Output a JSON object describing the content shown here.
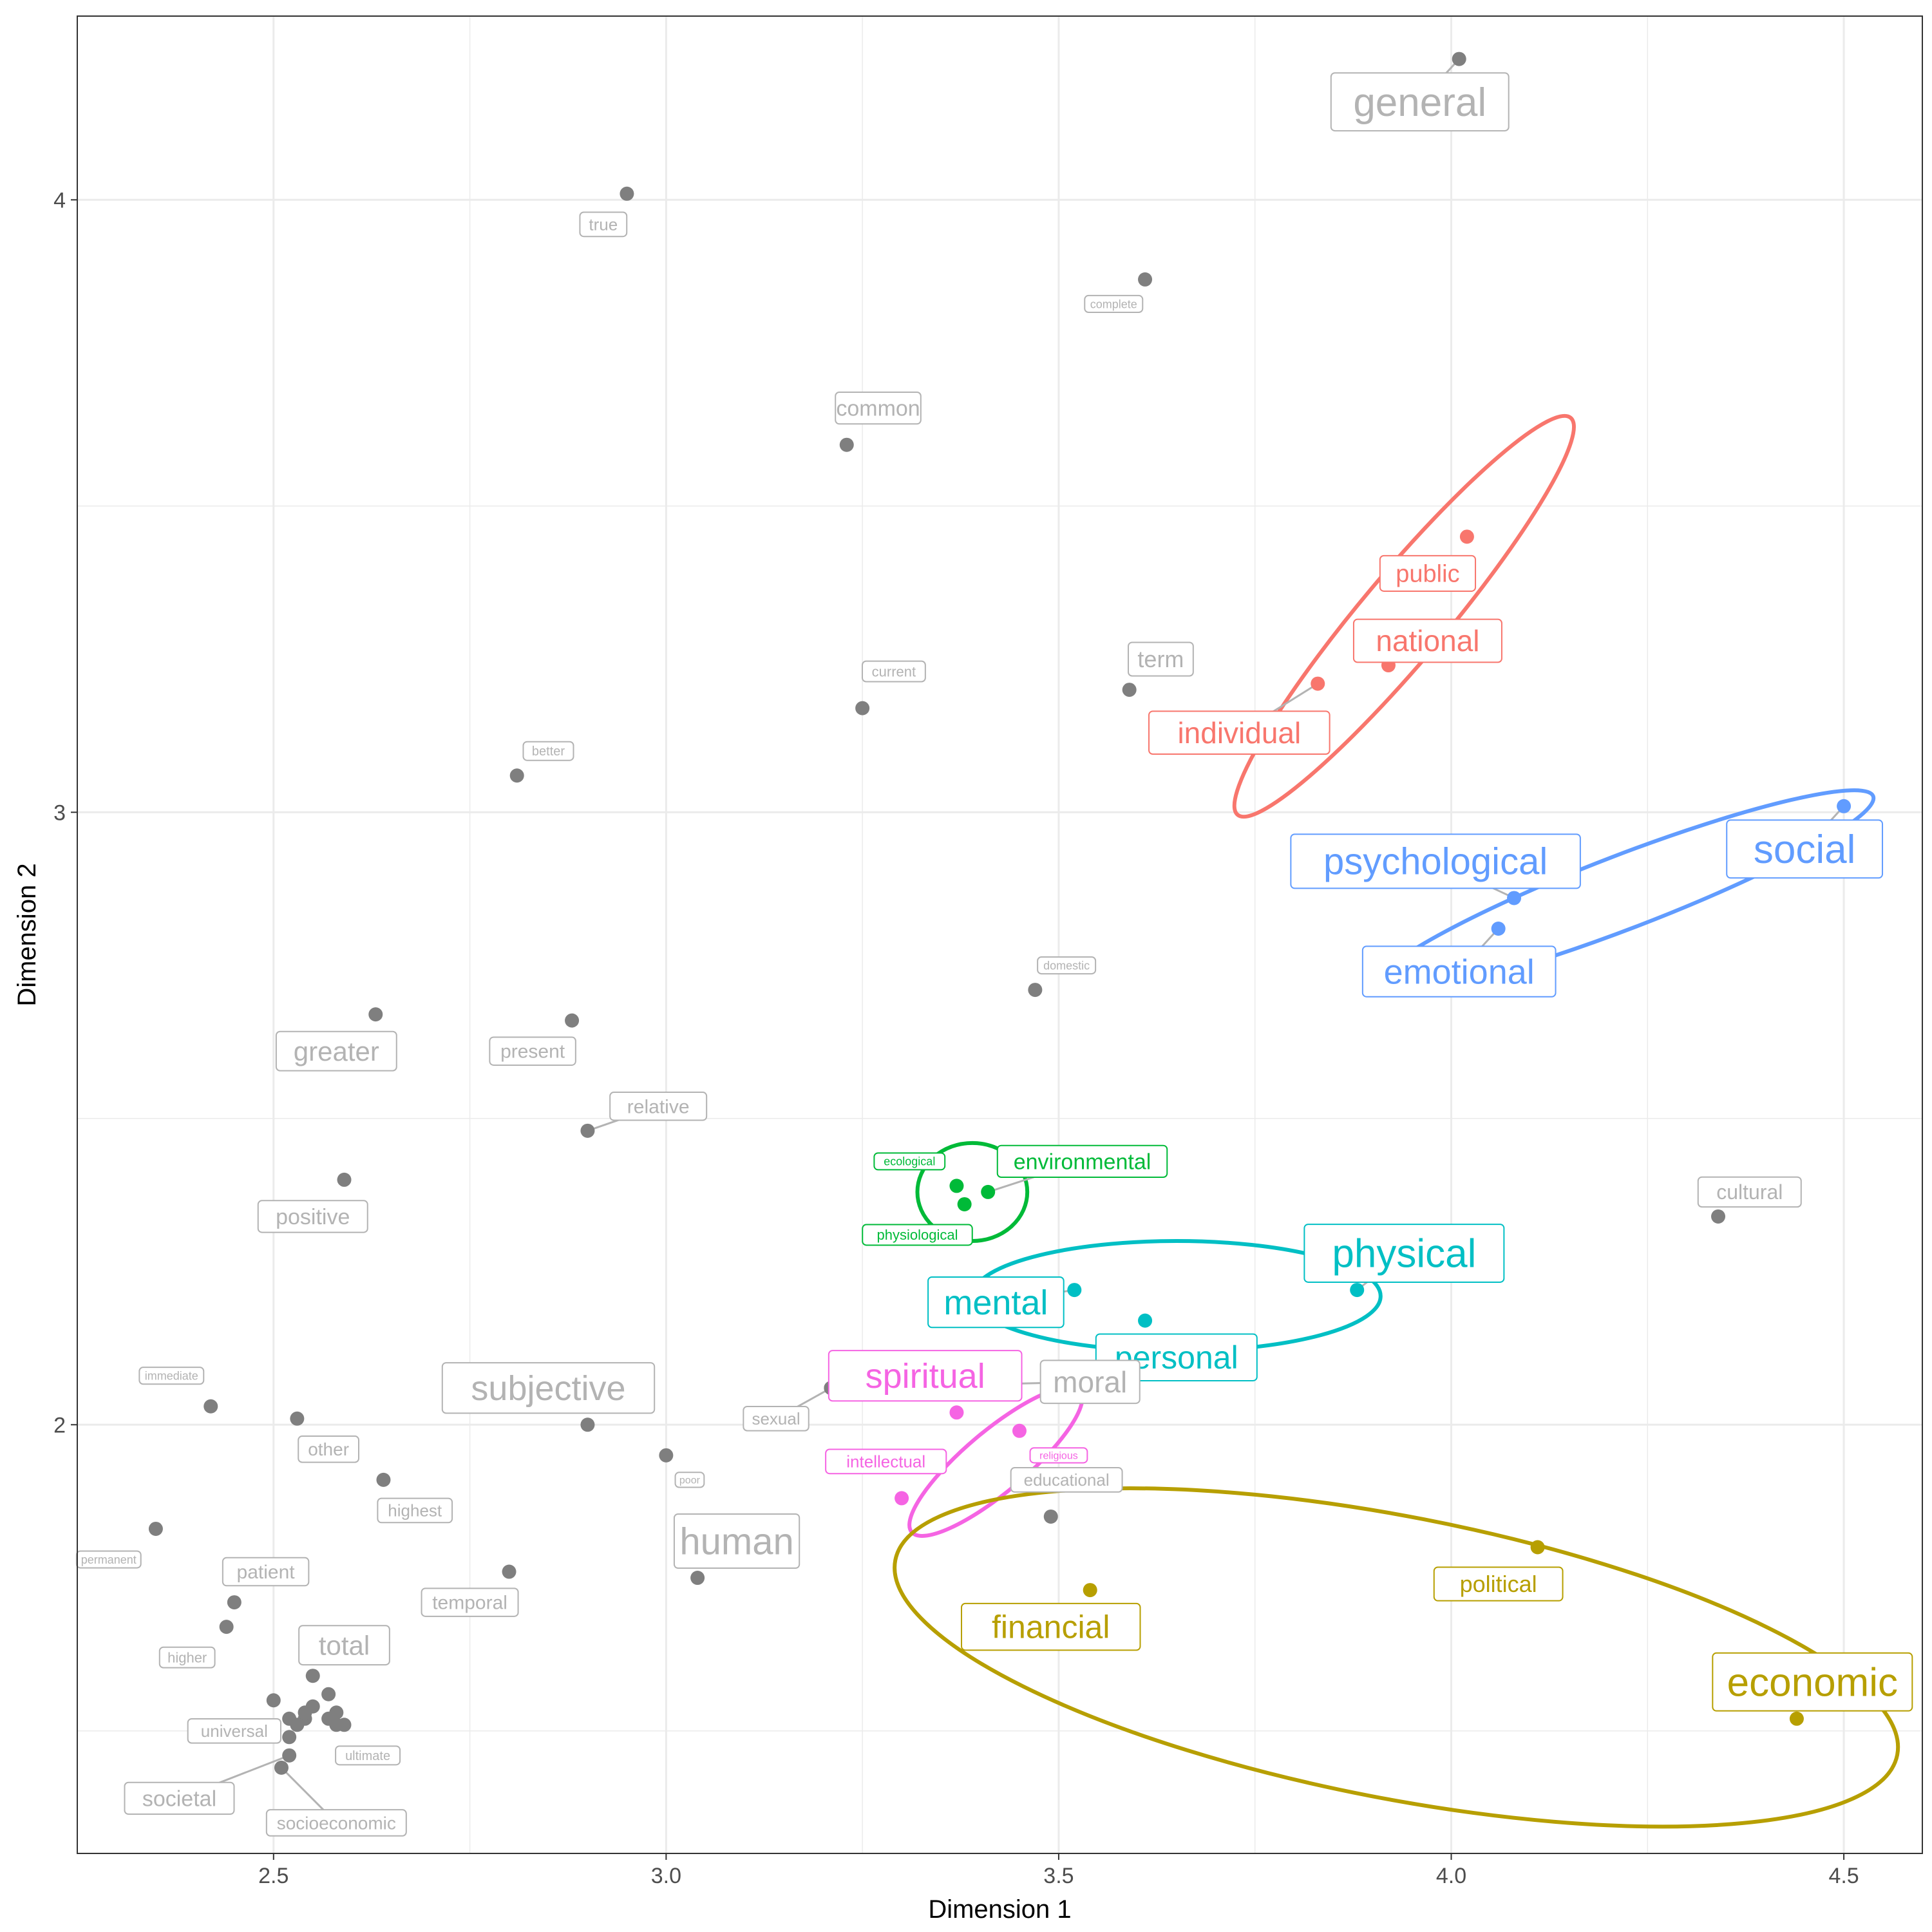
{
  "chart_data": {
    "type": "scatter",
    "title": "",
    "xlabel": "Dimension 1",
    "ylabel": "Dimension 2",
    "xlim": [
      2.25,
      4.6
    ],
    "ylim": [
      1.3,
      4.3
    ],
    "x_ticks": [
      2.5,
      3.0,
      3.5,
      4.0,
      4.5
    ],
    "x_tick_labels": [
      "2.5",
      "3.0",
      "3.5",
      "4.0",
      "4.5"
    ],
    "y_ticks": [
      2,
      3,
      4
    ],
    "y_tick_labels": [
      "2",
      "3",
      "4"
    ],
    "grid": true,
    "legend": "none",
    "colors": {
      "grey_point": "#7f7f7f",
      "grey_label": "#b3b3b3",
      "red": "#F8766D",
      "gold": "#B79F00",
      "green": "#00BA38",
      "teal": "#00BFC4",
      "blue": "#619CFF",
      "magenta": "#F564E3"
    },
    "clusters": [
      {
        "group": "red",
        "center": [
          3.94,
          3.32
        ],
        "radius": [
          0.33,
          0.07
        ],
        "angle_deg": 50
      },
      {
        "group": "blue",
        "center": [
          4.22,
          2.87
        ],
        "radius": [
          0.34,
          0.06
        ],
        "angle_deg": 21
      },
      {
        "group": "green",
        "center": [
          3.39,
          2.38
        ],
        "radius": [
          0.07,
          0.08
        ],
        "angle_deg": 0
      },
      {
        "group": "teal",
        "center": [
          3.65,
          2.21
        ],
        "radius": [
          0.26,
          0.09
        ],
        "angle_deg": 0
      },
      {
        "group": "magenta",
        "center": [
          3.42,
          1.94
        ],
        "radius": [
          0.14,
          0.05
        ],
        "angle_deg": 40
      },
      {
        "group": "gold",
        "center": [
          3.93,
          1.62
        ],
        "radius": [
          0.65,
          0.23
        ],
        "angle_deg": -11
      }
    ],
    "points": [
      {
        "label": "general",
        "x": 4.01,
        "y": 4.23,
        "group": "grey",
        "size": 62,
        "lx": 3.96,
        "ly": 4.16
      },
      {
        "label": "true",
        "x": 2.95,
        "y": 4.01,
        "group": "grey",
        "size": 26,
        "lx": 2.92,
        "ly": 3.96
      },
      {
        "label": "complete",
        "x": 3.61,
        "y": 3.87,
        "group": "grey",
        "size": 18,
        "lx": 3.57,
        "ly": 3.83
      },
      {
        "label": "common",
        "x": 3.23,
        "y": 3.6,
        "group": "grey",
        "size": 34,
        "lx": 3.27,
        "ly": 3.66
      },
      {
        "label": "public",
        "x": 4.02,
        "y": 3.45,
        "group": "red",
        "size": 38,
        "lx": 3.97,
        "ly": 3.39
      },
      {
        "label": "national",
        "x": 3.92,
        "y": 3.24,
        "group": "red",
        "size": 46,
        "lx": 3.97,
        "ly": 3.28
      },
      {
        "label": "individual",
        "x": 3.83,
        "y": 3.21,
        "group": "red",
        "size": 46,
        "lx": 3.73,
        "ly": 3.13
      },
      {
        "label": "term",
        "x": 3.59,
        "y": 3.2,
        "group": "grey",
        "size": 36,
        "lx": 3.63,
        "ly": 3.25
      },
      {
        "label": "current",
        "x": 3.25,
        "y": 3.17,
        "group": "grey",
        "size": 22,
        "lx": 3.29,
        "ly": 3.23
      },
      {
        "label": "better",
        "x": 2.81,
        "y": 3.06,
        "group": "grey",
        "size": 20,
        "lx": 2.85,
        "ly": 3.1
      },
      {
        "label": "social",
        "x": 4.5,
        "y": 3.01,
        "group": "blue",
        "size": 62,
        "lx": 4.45,
        "ly": 2.94
      },
      {
        "label": "psychological",
        "x": 4.08,
        "y": 2.86,
        "group": "blue",
        "size": 58,
        "lx": 3.98,
        "ly": 2.92
      },
      {
        "label": "emotional",
        "x": 4.06,
        "y": 2.81,
        "group": "blue",
        "size": 54,
        "lx": 4.01,
        "ly": 2.74
      },
      {
        "label": "domestic",
        "x": 3.47,
        "y": 2.71,
        "group": "grey",
        "size": 18,
        "lx": 3.51,
        "ly": 2.75
      },
      {
        "label": "greater",
        "x": 2.63,
        "y": 2.67,
        "group": "grey",
        "size": 42,
        "lx": 2.58,
        "ly": 2.61
      },
      {
        "label": "present",
        "x": 2.88,
        "y": 2.66,
        "group": "grey",
        "size": 30,
        "lx": 2.83,
        "ly": 2.61
      },
      {
        "label": "relative",
        "x": 2.9,
        "y": 2.48,
        "group": "grey",
        "size": 30,
        "lx": 2.99,
        "ly": 2.52
      },
      {
        "label": "environmental",
        "x": 3.41,
        "y": 2.38,
        "group": "green",
        "size": 34,
        "lx": 3.53,
        "ly": 2.43
      },
      {
        "label": "ecological",
        "x": 3.37,
        "y": 2.39,
        "group": "green",
        "size": 18,
        "lx": 3.31,
        "ly": 2.43
      },
      {
        "label": "physiological",
        "x": 3.38,
        "y": 2.36,
        "group": "green",
        "size": 22,
        "lx": 3.32,
        "ly": 2.31
      },
      {
        "label": "positive",
        "x": 2.59,
        "y": 2.4,
        "group": "grey",
        "size": 34,
        "lx": 2.55,
        "ly": 2.34
      },
      {
        "label": "cultural",
        "x": 4.34,
        "y": 2.34,
        "group": "grey",
        "size": 32,
        "lx": 4.38,
        "ly": 2.38
      },
      {
        "label": "physical",
        "x": 3.88,
        "y": 2.22,
        "group": "teal",
        "size": 62,
        "lx": 3.94,
        "ly": 2.28
      },
      {
        "label": "mental",
        "x": 3.52,
        "y": 2.22,
        "group": "teal",
        "size": 54,
        "lx": 3.42,
        "ly": 2.2
      },
      {
        "label": "personal",
        "x": 3.61,
        "y": 2.17,
        "group": "teal",
        "size": 50,
        "lx": 3.65,
        "ly": 2.11
      },
      {
        "label": "moral",
        "x": 3.21,
        "y": 2.06,
        "group": "grey",
        "size": 46,
        "lx": 3.54,
        "ly": 2.07
      },
      {
        "label": "sexual",
        "x": 3.21,
        "y": 2.06,
        "group": "grey",
        "size": 26,
        "lx": 3.14,
        "ly": 2.01
      },
      {
        "label": "spiritual",
        "x": 3.37,
        "y": 2.02,
        "group": "magenta",
        "size": 54,
        "lx": 3.33,
        "ly": 2.08
      },
      {
        "label": "religious",
        "x": 3.45,
        "y": 1.99,
        "group": "magenta",
        "size": 16,
        "lx": 3.5,
        "ly": 1.95
      },
      {
        "label": "intellectual",
        "x": 3.3,
        "y": 1.88,
        "group": "magenta",
        "size": 26,
        "lx": 3.28,
        "ly": 1.94
      },
      {
        "label": "educational",
        "x": 3.49,
        "y": 1.85,
        "group": "grey",
        "size": 26,
        "lx": 3.51,
        "ly": 1.91
      },
      {
        "label": "subjective",
        "x": 2.9,
        "y": 2.0,
        "group": "grey",
        "size": 54,
        "lx": 2.85,
        "ly": 2.06
      },
      {
        "label": "immediate",
        "x": 2.42,
        "y": 2.03,
        "group": "grey",
        "size": 18,
        "lx": 2.37,
        "ly": 2.08
      },
      {
        "label": "other",
        "x": 2.53,
        "y": 2.01,
        "group": "grey",
        "size": 28,
        "lx": 2.57,
        "ly": 1.96
      },
      {
        "label": "poor",
        "x": 3.0,
        "y": 1.95,
        "group": "grey",
        "size": 16,
        "lx": 3.03,
        "ly": 1.91
      },
      {
        "label": "highest",
        "x": 2.64,
        "y": 1.91,
        "group": "grey",
        "size": 26,
        "lx": 2.68,
        "ly": 1.86
      },
      {
        "label": "permanent",
        "x": 2.35,
        "y": 1.83,
        "group": "grey",
        "size": 18,
        "lx": 2.29,
        "ly": 1.78
      },
      {
        "label": "human",
        "x": 3.04,
        "y": 1.75,
        "group": "grey",
        "size": 58,
        "lx": 3.09,
        "ly": 1.81
      },
      {
        "label": "political",
        "x": 4.11,
        "y": 1.8,
        "group": "gold",
        "size": 36,
        "lx": 4.06,
        "ly": 1.74
      },
      {
        "label": "financial",
        "x": 3.54,
        "y": 1.73,
        "group": "gold",
        "size": 50,
        "lx": 3.49,
        "ly": 1.67
      },
      {
        "label": "economic",
        "x": 4.44,
        "y": 1.52,
        "group": "gold",
        "size": 62,
        "lx": 4.46,
        "ly": 1.58
      },
      {
        "label": "temporal",
        "x": 2.8,
        "y": 1.76,
        "group": "grey",
        "size": 30,
        "lx": 2.75,
        "ly": 1.71
      },
      {
        "label": "patient",
        "x": 2.45,
        "y": 1.71,
        "group": "grey",
        "size": 30,
        "lx": 2.49,
        "ly": 1.76
      },
      {
        "label": "higher",
        "x": 2.44,
        "y": 1.67,
        "group": "grey",
        "size": 22,
        "lx": 2.39,
        "ly": 1.62
      },
      {
        "label": "total",
        "x": 2.55,
        "y": 1.59,
        "group": "grey",
        "size": 42,
        "lx": 2.59,
        "ly": 1.64
      },
      {
        "label": "universal",
        "x": 2.5,
        "y": 1.55,
        "group": "grey",
        "size": 26,
        "lx": 2.45,
        "ly": 1.5
      },
      {
        "label": "ultimate",
        "x": 2.58,
        "y": 1.51,
        "group": "grey",
        "size": 20,
        "lx": 2.62,
        "ly": 1.46
      },
      {
        "label": "societal",
        "x": 2.52,
        "y": 1.46,
        "group": "grey",
        "size": 34,
        "lx": 2.38,
        "ly": 1.39
      },
      {
        "label": "socioeconomic",
        "x": 2.51,
        "y": 1.44,
        "group": "grey",
        "size": 28,
        "lx": 2.58,
        "ly": 1.35
      }
    ],
    "extra_points": [
      [
        2.57,
        1.56
      ],
      [
        2.55,
        1.54
      ],
      [
        2.54,
        1.52
      ],
      [
        2.53,
        1.51
      ],
      [
        2.57,
        1.52
      ],
      [
        2.59,
        1.51
      ],
      [
        2.52,
        1.49
      ],
      [
        2.52,
        1.52
      ],
      [
        2.54,
        1.53
      ],
      [
        2.58,
        1.53
      ]
    ]
  }
}
